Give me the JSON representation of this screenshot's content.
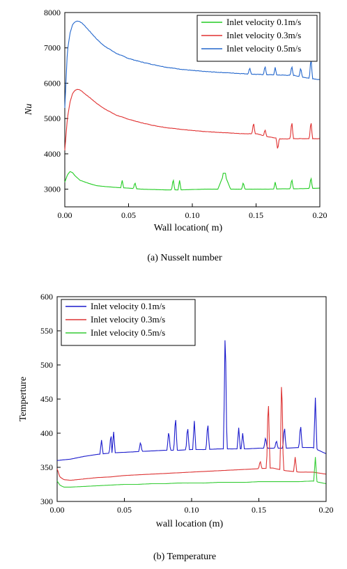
{
  "chart_data": [
    {
      "type": "line",
      "caption": "(a)   Nusselt number",
      "xlabel": "Wall location(   m)",
      "ylabel": "Nu",
      "xlim": [
        0.0,
        0.2
      ],
      "ylim": [
        2500,
        8000
      ],
      "xticks": [
        "0.00",
        "0.05",
        "0.10",
        "0.15",
        "0.20"
      ],
      "yticks": [
        "3000",
        "4000",
        "5000",
        "6000",
        "7000",
        "8000"
      ],
      "legend_position": "top-right",
      "series": [
        {
          "name": "Inlet velocity 0.1m/s",
          "color": "#22cc22",
          "x": [
            0.0,
            0.002,
            0.004,
            0.006,
            0.008,
            0.012,
            0.016,
            0.02,
            0.025,
            0.03,
            0.04,
            0.05,
            0.06,
            0.07,
            0.08,
            0.09,
            0.1,
            0.11,
            0.12,
            0.125,
            0.13,
            0.14,
            0.15,
            0.16,
            0.17,
            0.18,
            0.19,
            0.2
          ],
          "y": [
            3200,
            3400,
            3500,
            3470,
            3380,
            3250,
            3200,
            3150,
            3100,
            3080,
            3050,
            3030,
            3000,
            2990,
            2980,
            2980,
            2990,
            3000,
            3000,
            3450,
            3000,
            3000,
            3000,
            3000,
            3010,
            3010,
            3020,
            3030
          ],
          "spikes": [
            [
              0.045,
              3250
            ],
            [
              0.055,
              3200
            ],
            [
              0.085,
              3300
            ],
            [
              0.09,
              3250
            ],
            [
              0.125,
              3450
            ],
            [
              0.14,
              3200
            ],
            [
              0.165,
              3200
            ],
            [
              0.178,
              3300
            ],
            [
              0.193,
              3350
            ]
          ]
        },
        {
          "name": "Inlet velocity 0.3m/s",
          "color": "#e03030",
          "x": [
            0.0,
            0.002,
            0.004,
            0.006,
            0.008,
            0.01,
            0.012,
            0.015,
            0.02,
            0.025,
            0.03,
            0.04,
            0.05,
            0.06,
            0.07,
            0.08,
            0.09,
            0.1,
            0.11,
            0.12,
            0.13,
            0.14,
            0.15,
            0.16,
            0.17,
            0.18,
            0.19,
            0.2
          ],
          "y": [
            4100,
            5000,
            5450,
            5700,
            5800,
            5830,
            5810,
            5720,
            5580,
            5430,
            5300,
            5100,
            4980,
            4880,
            4800,
            4740,
            4700,
            4660,
            4630,
            4610,
            4590,
            4570,
            4570,
            4480,
            4420,
            4430,
            4430,
            4430
          ],
          "spikes": [
            [
              0.148,
              4900
            ],
            [
              0.157,
              4700
            ],
            [
              0.167,
              4100
            ],
            [
              0.178,
              4950
            ],
            [
              0.193,
              4950
            ]
          ]
        },
        {
          "name": "Inlet velocity 0.5m/s",
          "color": "#2266cc",
          "x": [
            0.0,
            0.002,
            0.004,
            0.006,
            0.008,
            0.01,
            0.012,
            0.015,
            0.02,
            0.025,
            0.03,
            0.04,
            0.05,
            0.06,
            0.07,
            0.08,
            0.09,
            0.1,
            0.11,
            0.12,
            0.13,
            0.14,
            0.15,
            0.16,
            0.17,
            0.18,
            0.19,
            0.2
          ],
          "y": [
            5300,
            6900,
            7400,
            7650,
            7740,
            7760,
            7740,
            7650,
            7450,
            7250,
            7080,
            6850,
            6700,
            6600,
            6520,
            6450,
            6400,
            6360,
            6330,
            6310,
            6290,
            6270,
            6250,
            6240,
            6230,
            6220,
            6150,
            6100
          ],
          "spikes": [
            [
              0.145,
              6450
            ],
            [
              0.157,
              6500
            ],
            [
              0.165,
              6450
            ],
            [
              0.178,
              6500
            ],
            [
              0.185,
              6450
            ],
            [
              0.193,
              6750
            ]
          ]
        }
      ]
    },
    {
      "type": "line",
      "caption": "(b)   Temperature",
      "xlabel": "wall location (m)",
      "ylabel": "Temperture",
      "xlim": [
        0.0,
        0.2
      ],
      "ylim": [
        300,
        600
      ],
      "xticks": [
        "0.00",
        "0.05",
        "0.10",
        "0.15",
        "0.20"
      ],
      "yticks": [
        "300",
        "350",
        "400",
        "450",
        "500",
        "550",
        "600"
      ],
      "legend_position": "top-left",
      "series": [
        {
          "name": "Inlet velocity 0.1m/s",
          "color": "#1a1acc",
          "x": [
            0.0,
            0.01,
            0.02,
            0.03,
            0.04,
            0.05,
            0.06,
            0.07,
            0.08,
            0.09,
            0.1,
            0.11,
            0.12,
            0.13,
            0.14,
            0.15,
            0.16,
            0.17,
            0.18,
            0.19,
            0.2
          ],
          "y": [
            360,
            362,
            366,
            369,
            371,
            372,
            373,
            374,
            375,
            375,
            376,
            376,
            377,
            377,
            377,
            378,
            378,
            378,
            379,
            379,
            370
          ],
          "spikes": [
            [
              0.033,
              390
            ],
            [
              0.04,
              400
            ],
            [
              0.042,
              402
            ],
            [
              0.062,
              388
            ],
            [
              0.083,
              405
            ],
            [
              0.088,
              428
            ],
            [
              0.097,
              412
            ],
            [
              0.102,
              418
            ],
            [
              0.112,
              418
            ],
            [
              0.125,
              568
            ],
            [
              0.135,
              408
            ],
            [
              0.138,
              400
            ],
            [
              0.155,
              395
            ],
            [
              0.163,
              390
            ],
            [
              0.169,
              412
            ],
            [
              0.181,
              415
            ],
            [
              0.192,
              452
            ]
          ]
        },
        {
          "name": "Inlet velocity 0.3m/s",
          "color": "#dd3333",
          "x": [
            0.0,
            0.002,
            0.005,
            0.01,
            0.02,
            0.03,
            0.04,
            0.05,
            0.06,
            0.07,
            0.08,
            0.09,
            0.1,
            0.11,
            0.12,
            0.13,
            0.14,
            0.15,
            0.16,
            0.17,
            0.18,
            0.19,
            0.2
          ],
          "y": [
            348,
            336,
            332,
            331,
            333,
            335,
            336,
            338,
            339,
            340,
            341,
            342,
            343,
            344,
            345,
            346,
            347,
            348,
            349,
            345,
            343,
            343,
            340
          ],
          "spikes": [
            [
              0.151,
              360
            ],
            [
              0.157,
              458
            ],
            [
              0.167,
              492
            ],
            [
              0.177,
              365
            ]
          ]
        },
        {
          "name": "Inlet velocity 0.5m/s",
          "color": "#33cc33",
          "x": [
            0.0,
            0.002,
            0.005,
            0.01,
            0.02,
            0.03,
            0.04,
            0.05,
            0.06,
            0.07,
            0.08,
            0.09,
            0.1,
            0.11,
            0.12,
            0.13,
            0.14,
            0.15,
            0.16,
            0.17,
            0.18,
            0.19,
            0.2
          ],
          "y": [
            330,
            324,
            321,
            321,
            322,
            323,
            324,
            325,
            325,
            326,
            326,
            327,
            327,
            327,
            328,
            328,
            328,
            329,
            329,
            329,
            329,
            330,
            326
          ],
          "spikes": [
            [
              0.192,
              365
            ]
          ]
        }
      ]
    }
  ]
}
